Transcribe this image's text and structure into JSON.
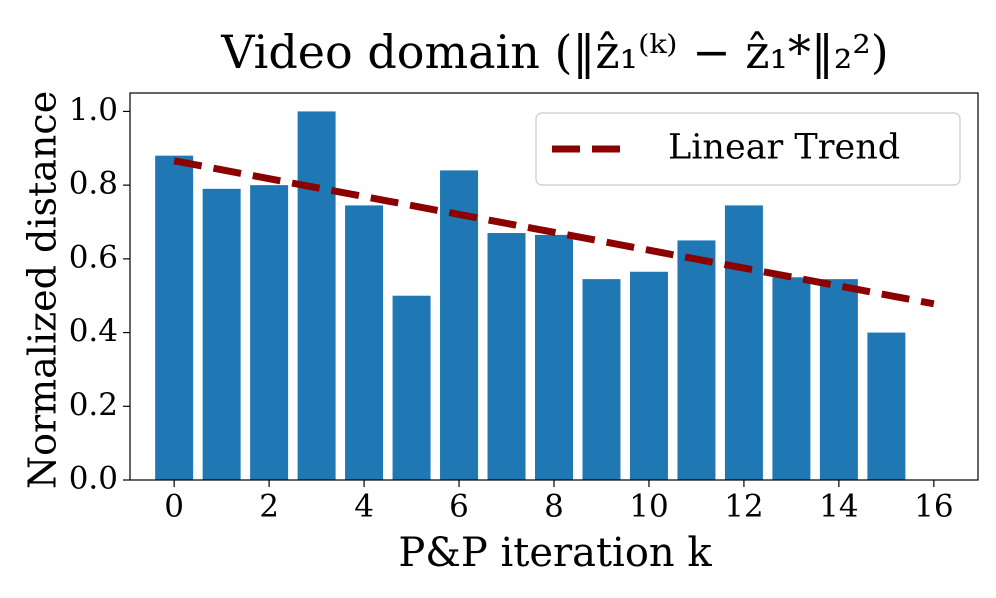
{
  "chart_data": {
    "type": "bar",
    "title": "Video domain (‖ẑ₁⁽ᵏ⁾ − ẑ₁*‖₂²)",
    "xlabel": "P&P iteration k",
    "ylabel": "Normalized distance",
    "x": [
      0,
      1,
      2,
      3,
      4,
      5,
      6,
      7,
      8,
      9,
      10,
      11,
      12,
      13,
      14,
      15
    ],
    "values": [
      0.88,
      0.79,
      0.8,
      1.0,
      0.745,
      0.5,
      0.84,
      0.67,
      0.665,
      0.545,
      0.565,
      0.65,
      0.745,
      0.55,
      0.545,
      0.4
    ],
    "color": "#1f77b4",
    "trend": {
      "name": "Linear Trend",
      "color": "#8b0000",
      "x": [
        0,
        16
      ],
      "values": [
        0.866,
        0.478
      ]
    },
    "xlim": [
      -0.93,
      16.93
    ],
    "ylim": [
      0,
      1.05
    ],
    "xticks": [
      0,
      2,
      4,
      6,
      8,
      10,
      12,
      14,
      16
    ],
    "yticks": [
      {
        "value": 0,
        "label": "0.0"
      },
      {
        "value": 0.2,
        "label": "0.2"
      },
      {
        "value": 0.4,
        "label": "0.4"
      },
      {
        "value": 0.6,
        "label": "0.6"
      },
      {
        "value": 0.8,
        "label": "0.8"
      },
      {
        "value": 1.0,
        "label": "1.0"
      }
    ],
    "legend": "upper right"
  }
}
